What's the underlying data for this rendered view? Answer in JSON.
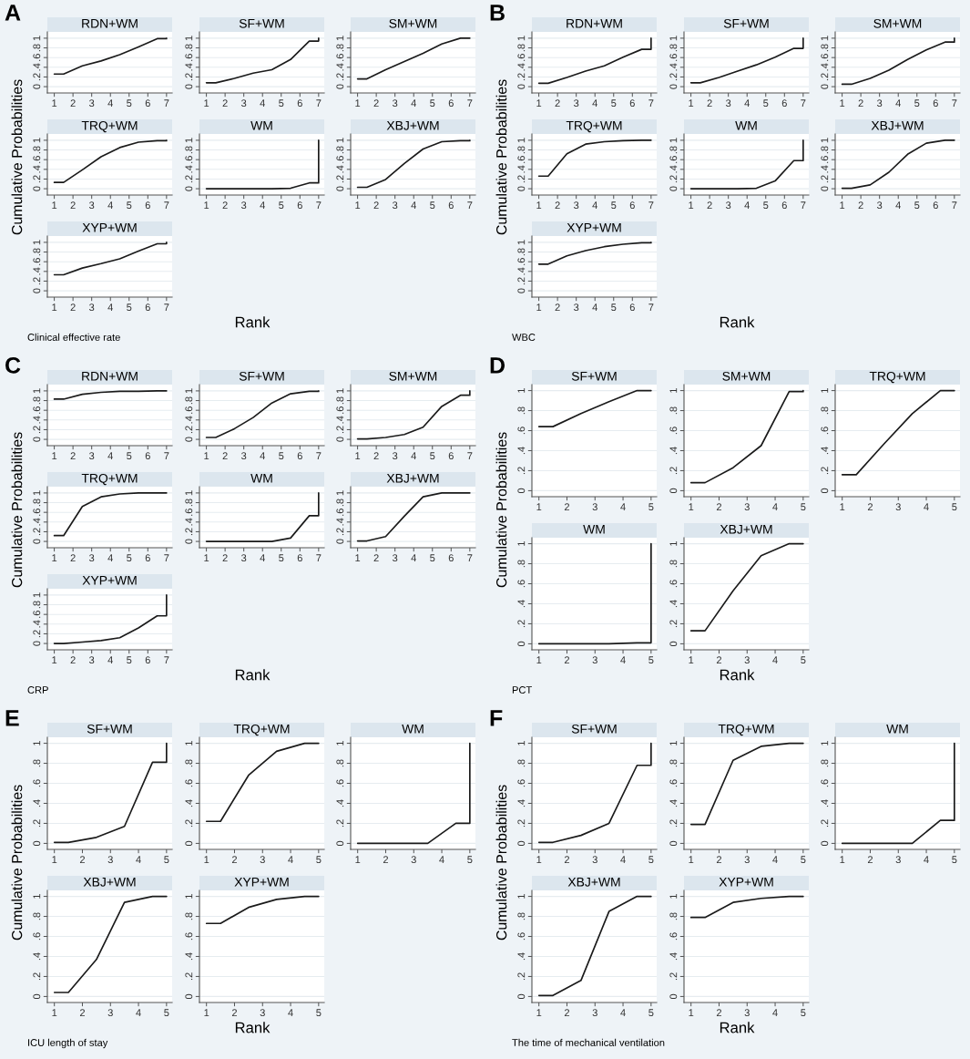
{
  "chart_data": [
    {
      "type": "line",
      "title": "RDN+WM",
      "xlabel": "Rank",
      "ylabel": "Cumulative Probabilities",
      "annotations": [
        "A",
        "Clinical effective rate"
      ],
      "color": "#1a1a1a",
      "grid": "y",
      "x": [
        1,
        1.5,
        2.5,
        3.5,
        4.5,
        5.5,
        6.5,
        7,
        7
      ],
      "values": [
        0.26,
        0.26,
        0.43,
        0.53,
        0.66,
        0.82,
        0.99,
        0.99,
        1
      ],
      "xlim": [
        0.63,
        7.3
      ],
      "xticks": [
        1,
        2,
        3,
        4,
        5,
        6,
        7
      ],
      "ylim": [
        -0.13,
        1.13
      ],
      "yticks": [
        0,
        {
          "value": 0.2,
          "label": ".2"
        },
        {
          "value": 0.4,
          "label": ".4"
        },
        {
          "value": 0.6,
          "label": ".6"
        },
        {
          "value": 0.8,
          "label": ".8"
        },
        1
      ]
    },
    {
      "type": "line",
      "title": "SF+WM",
      "color": "#1a1a1a",
      "grid": "y",
      "x": [
        1,
        1.5,
        2.5,
        3.5,
        4.5,
        5.5,
        6.5,
        7,
        7
      ],
      "values": [
        0.08,
        0.08,
        0.17,
        0.28,
        0.35,
        0.56,
        0.94,
        0.94,
        1
      ],
      "xlim": [
        0.63,
        7.3
      ],
      "xticks": [
        1,
        2,
        3,
        4,
        5,
        6,
        7
      ],
      "ylim": [
        -0.13,
        1.13
      ],
      "yticks": [
        0,
        {
          "value": 0.2,
          "label": ".2"
        },
        {
          "value": 0.4,
          "label": ".4"
        },
        {
          "value": 0.6,
          "label": ".6"
        },
        {
          "value": 0.8,
          "label": ".8"
        },
        1
      ]
    },
    {
      "type": "line",
      "title": "SM+WM",
      "color": "#1a1a1a",
      "grid": "y",
      "x": [
        1,
        1.5,
        2.5,
        3.5,
        4.5,
        5.5,
        6.5,
        7,
        7
      ],
      "values": [
        0.16,
        0.16,
        0.35,
        0.52,
        0.69,
        0.88,
        1,
        1,
        1
      ],
      "xlim": [
        0.63,
        7.3
      ],
      "xticks": [
        1,
        2,
        3,
        4,
        5,
        6,
        7
      ],
      "ylim": [
        -0.13,
        1.13
      ],
      "yticks": [
        0,
        {
          "value": 0.2,
          "label": ".2"
        },
        {
          "value": 0.4,
          "label": ".4"
        },
        {
          "value": 0.6,
          "label": ".6"
        },
        {
          "value": 0.8,
          "label": ".8"
        },
        1
      ]
    },
    {
      "type": "line",
      "title": "TRQ+WM",
      "color": "#1a1a1a",
      "grid": "y",
      "x": [
        1,
        1.5,
        2.5,
        3.5,
        4.5,
        5.5,
        6.5,
        7,
        7
      ],
      "values": [
        0.13,
        0.13,
        0.39,
        0.66,
        0.85,
        0.96,
        0.99,
        0.99,
        1
      ],
      "xlim": [
        0.63,
        7.3
      ],
      "xticks": [
        1,
        2,
        3,
        4,
        5,
        6,
        7
      ],
      "ylim": [
        -0.13,
        1.13
      ],
      "yticks": [
        0,
        {
          "value": 0.2,
          "label": ".2"
        },
        {
          "value": 0.4,
          "label": ".4"
        },
        {
          "value": 0.6,
          "label": ".6"
        },
        {
          "value": 0.8,
          "label": ".8"
        },
        1
      ]
    },
    {
      "type": "line",
      "title": "WM",
      "color": "#1a1a1a",
      "grid": "y",
      "x": [
        1,
        1.5,
        2.5,
        3.5,
        4.5,
        5.5,
        6.5,
        7,
        7
      ],
      "values": [
        0,
        0,
        0,
        0,
        0,
        0.01,
        0.12,
        0.12,
        1
      ],
      "xlim": [
        0.63,
        7.3
      ],
      "xticks": [
        1,
        2,
        3,
        4,
        5,
        6,
        7
      ],
      "ylim": [
        -0.13,
        1.13
      ],
      "yticks": [
        0,
        {
          "value": 0.2,
          "label": ".2"
        },
        {
          "value": 0.4,
          "label": ".4"
        },
        {
          "value": 0.6,
          "label": ".6"
        },
        {
          "value": 0.8,
          "label": ".8"
        },
        1
      ]
    },
    {
      "type": "line",
      "title": "XBJ+WM",
      "color": "#1a1a1a",
      "grid": "y",
      "x": [
        1,
        1.5,
        2.5,
        3.5,
        4.5,
        5.5,
        6.5,
        7,
        7
      ],
      "values": [
        0.03,
        0.03,
        0.19,
        0.52,
        0.82,
        0.97,
        0.99,
        0.99,
        1
      ],
      "xlim": [
        0.63,
        7.3
      ],
      "xticks": [
        1,
        2,
        3,
        4,
        5,
        6,
        7
      ],
      "ylim": [
        -0.13,
        1.13
      ],
      "yticks": [
        0,
        {
          "value": 0.2,
          "label": ".2"
        },
        {
          "value": 0.4,
          "label": ".4"
        },
        {
          "value": 0.6,
          "label": ".6"
        },
        {
          "value": 0.8,
          "label": ".8"
        },
        1
      ]
    },
    {
      "type": "line",
      "title": "XYP+WM",
      "color": "#1a1a1a",
      "grid": "y",
      "x": [
        1,
        1.5,
        2.5,
        3.5,
        4.5,
        5.5,
        6.5,
        7,
        7
      ],
      "values": [
        0.33,
        0.33,
        0.47,
        0.56,
        0.66,
        0.82,
        0.97,
        0.97,
        1
      ],
      "xlim": [
        0.63,
        7.3
      ],
      "xticks": [
        1,
        2,
        3,
        4,
        5,
        6,
        7
      ],
      "ylim": [
        -0.13,
        1.13
      ],
      "yticks": [
        0,
        {
          "value": 0.2,
          "label": ".2"
        },
        {
          "value": 0.4,
          "label": ".4"
        },
        {
          "value": 0.6,
          "label": ".6"
        },
        {
          "value": 0.8,
          "label": ".8"
        },
        1
      ]
    },
    {
      "type": "line",
      "title": "RDN+WM",
      "xlabel": "Rank",
      "ylabel": "Cumulative Probabilities",
      "annotations": [
        "B",
        "WBC"
      ],
      "color": "#1a1a1a",
      "grid": "y",
      "x": [
        1,
        1.5,
        2.5,
        3.5,
        4.5,
        5.5,
        6.5,
        7,
        7
      ],
      "values": [
        0.07,
        0.07,
        0.19,
        0.32,
        0.43,
        0.61,
        0.77,
        0.77,
        1
      ],
      "xlim": [
        0.63,
        7.3
      ],
      "xticks": [
        1,
        2,
        3,
        4,
        5,
        6,
        7
      ],
      "ylim": [
        -0.13,
        1.13
      ],
      "yticks": [
        0,
        {
          "value": 0.2,
          "label": ".2"
        },
        {
          "value": 0.4,
          "label": ".4"
        },
        {
          "value": 0.6,
          "label": ".6"
        },
        {
          "value": 0.8,
          "label": ".8"
        },
        1
      ]
    },
    {
      "type": "line",
      "title": "SF+WM",
      "color": "#1a1a1a",
      "grid": "y",
      "x": [
        1,
        1.5,
        2.5,
        3.5,
        4.5,
        5.5,
        6.5,
        7,
        7
      ],
      "values": [
        0.08,
        0.08,
        0.19,
        0.32,
        0.45,
        0.61,
        0.79,
        0.79,
        1
      ],
      "xlim": [
        0.63,
        7.3
      ],
      "xticks": [
        1,
        2,
        3,
        4,
        5,
        6,
        7
      ],
      "ylim": [
        -0.13,
        1.13
      ],
      "yticks": [
        0,
        {
          "value": 0.2,
          "label": ".2"
        },
        {
          "value": 0.4,
          "label": ".4"
        },
        {
          "value": 0.6,
          "label": ".6"
        },
        {
          "value": 0.8,
          "label": ".8"
        },
        1
      ]
    },
    {
      "type": "line",
      "title": "SM+WM",
      "color": "#1a1a1a",
      "grid": "y",
      "x": [
        1,
        1.5,
        2.5,
        3.5,
        4.5,
        5.5,
        6.5,
        7,
        7
      ],
      "values": [
        0.05,
        0.05,
        0.17,
        0.34,
        0.56,
        0.76,
        0.92,
        0.92,
        1
      ],
      "xlim": [
        0.63,
        7.3
      ],
      "xticks": [
        1,
        2,
        3,
        4,
        5,
        6,
        7
      ],
      "ylim": [
        -0.13,
        1.13
      ],
      "yticks": [
        0,
        {
          "value": 0.2,
          "label": ".2"
        },
        {
          "value": 0.4,
          "label": ".4"
        },
        {
          "value": 0.6,
          "label": ".6"
        },
        {
          "value": 0.8,
          "label": ".8"
        },
        1
      ]
    },
    {
      "type": "line",
      "title": "TRQ+WM",
      "color": "#1a1a1a",
      "grid": "y",
      "x": [
        1,
        1.5,
        2.5,
        3.5,
        4.5,
        5.5,
        6.5,
        7,
        7
      ],
      "values": [
        0.26,
        0.26,
        0.72,
        0.92,
        0.97,
        0.99,
        1,
        1,
        1
      ],
      "xlim": [
        0.63,
        7.3
      ],
      "xticks": [
        1,
        2,
        3,
        4,
        5,
        6,
        7
      ],
      "ylim": [
        -0.13,
        1.13
      ],
      "yticks": [
        0,
        {
          "value": 0.2,
          "label": ".2"
        },
        {
          "value": 0.4,
          "label": ".4"
        },
        {
          "value": 0.6,
          "label": ".6"
        },
        {
          "value": 0.8,
          "label": ".8"
        },
        1
      ]
    },
    {
      "type": "line",
      "title": "WM",
      "color": "#1a1a1a",
      "grid": "y",
      "x": [
        1,
        1.5,
        2.5,
        3.5,
        4.5,
        5.5,
        6.5,
        7,
        7
      ],
      "values": [
        0,
        0,
        0,
        0,
        0.01,
        0.16,
        0.58,
        0.58,
        1
      ],
      "xlim": [
        0.63,
        7.3
      ],
      "xticks": [
        1,
        2,
        3,
        4,
        5,
        6,
        7
      ],
      "ylim": [
        -0.13,
        1.13
      ],
      "yticks": [
        0,
        {
          "value": 0.2,
          "label": ".2"
        },
        {
          "value": 0.4,
          "label": ".4"
        },
        {
          "value": 0.6,
          "label": ".6"
        },
        {
          "value": 0.8,
          "label": ".8"
        },
        1
      ]
    },
    {
      "type": "line",
      "title": "XBJ+WM",
      "color": "#1a1a1a",
      "grid": "y",
      "x": [
        1,
        1.5,
        2.5,
        3.5,
        4.5,
        5.5,
        6.5,
        7,
        7
      ],
      "values": [
        0.01,
        0.01,
        0.08,
        0.34,
        0.71,
        0.94,
        1,
        1,
        1
      ],
      "xlim": [
        0.63,
        7.3
      ],
      "xticks": [
        1,
        2,
        3,
        4,
        5,
        6,
        7
      ],
      "ylim": [
        -0.13,
        1.13
      ],
      "yticks": [
        0,
        {
          "value": 0.2,
          "label": ".2"
        },
        {
          "value": 0.4,
          "label": ".4"
        },
        {
          "value": 0.6,
          "label": ".6"
        },
        {
          "value": 0.8,
          "label": ".8"
        },
        1
      ]
    },
    {
      "type": "line",
      "title": "XYP+WM",
      "color": "#1a1a1a",
      "grid": "y",
      "x": [
        1,
        1.5,
        2.5,
        3.5,
        4.5,
        5.5,
        6.5,
        7,
        7
      ],
      "values": [
        0.55,
        0.55,
        0.72,
        0.83,
        0.91,
        0.96,
        0.99,
        0.99,
        1
      ],
      "xlim": [
        0.63,
        7.3
      ],
      "xticks": [
        1,
        2,
        3,
        4,
        5,
        6,
        7
      ],
      "ylim": [
        -0.13,
        1.13
      ],
      "yticks": [
        0,
        {
          "value": 0.2,
          "label": ".2"
        },
        {
          "value": 0.4,
          "label": ".4"
        },
        {
          "value": 0.6,
          "label": ".6"
        },
        {
          "value": 0.8,
          "label": ".8"
        },
        1
      ]
    },
    {
      "type": "line",
      "title": "RDN+WM",
      "xlabel": "Rank",
      "ylabel": "Cumulative Probabilities",
      "annotations": [
        "C",
        "CRP"
      ],
      "color": "#1a1a1a",
      "grid": "y",
      "x": [
        1,
        1.5,
        2.5,
        3.5,
        4.5,
        5.5,
        6.5,
        7,
        7
      ],
      "values": [
        0.83,
        0.83,
        0.93,
        0.97,
        0.99,
        0.99,
        1,
        1,
        1
      ],
      "xlim": [
        0.63,
        7.3
      ],
      "xticks": [
        1,
        2,
        3,
        4,
        5,
        6,
        7
      ],
      "ylim": [
        -0.13,
        1.13
      ],
      "yticks": [
        0,
        {
          "value": 0.2,
          "label": ".2"
        },
        {
          "value": 0.4,
          "label": ".4"
        },
        {
          "value": 0.6,
          "label": ".6"
        },
        {
          "value": 0.8,
          "label": ".8"
        },
        1
      ]
    },
    {
      "type": "line",
      "title": "SF+WM",
      "color": "#1a1a1a",
      "grid": "y",
      "x": [
        1,
        1.5,
        2.5,
        3.5,
        4.5,
        5.5,
        6.5,
        7,
        7
      ],
      "values": [
        0.04,
        0.04,
        0.22,
        0.45,
        0.75,
        0.94,
        0.99,
        0.99,
        1
      ],
      "xlim": [
        0.63,
        7.3
      ],
      "xticks": [
        1,
        2,
        3,
        4,
        5,
        6,
        7
      ],
      "ylim": [
        -0.13,
        1.13
      ],
      "yticks": [
        0,
        {
          "value": 0.2,
          "label": ".2"
        },
        {
          "value": 0.4,
          "label": ".4"
        },
        {
          "value": 0.6,
          "label": ".6"
        },
        {
          "value": 0.8,
          "label": ".8"
        },
        1
      ]
    },
    {
      "type": "line",
      "title": "SM+WM",
      "color": "#1a1a1a",
      "grid": "y",
      "x": [
        1,
        1.5,
        2.5,
        3.5,
        4.5,
        5.5,
        6.5,
        7,
        7
      ],
      "values": [
        0.01,
        0.01,
        0.04,
        0.1,
        0.25,
        0.68,
        0.91,
        0.91,
        1
      ],
      "xlim": [
        0.63,
        7.3
      ],
      "xticks": [
        1,
        2,
        3,
        4,
        5,
        6,
        7
      ],
      "ylim": [
        -0.13,
        1.13
      ],
      "yticks": [
        0,
        {
          "value": 0.2,
          "label": ".2"
        },
        {
          "value": 0.4,
          "label": ".4"
        },
        {
          "value": 0.6,
          "label": ".6"
        },
        {
          "value": 0.8,
          "label": ".8"
        },
        1
      ]
    },
    {
      "type": "line",
      "title": "TRQ+WM",
      "color": "#1a1a1a",
      "grid": "y",
      "x": [
        1,
        1.5,
        2.5,
        3.5,
        4.5,
        5.5,
        6.5,
        7,
        7
      ],
      "values": [
        0.12,
        0.12,
        0.72,
        0.92,
        0.98,
        1,
        1,
        1,
        1
      ],
      "xlim": [
        0.63,
        7.3
      ],
      "xticks": [
        1,
        2,
        3,
        4,
        5,
        6,
        7
      ],
      "ylim": [
        -0.13,
        1.13
      ],
      "yticks": [
        0,
        {
          "value": 0.2,
          "label": ".2"
        },
        {
          "value": 0.4,
          "label": ".4"
        },
        {
          "value": 0.6,
          "label": ".6"
        },
        {
          "value": 0.8,
          "label": ".8"
        },
        1
      ]
    },
    {
      "type": "line",
      "title": "WM",
      "color": "#1a1a1a",
      "grid": "y",
      "x": [
        1,
        1.5,
        2.5,
        3.5,
        4.5,
        5.5,
        6.5,
        7,
        7
      ],
      "values": [
        0,
        0,
        0,
        0,
        0,
        0.07,
        0.53,
        0.53,
        1
      ],
      "xlim": [
        0.63,
        7.3
      ],
      "xticks": [
        1,
        2,
        3,
        4,
        5,
        6,
        7
      ],
      "ylim": [
        -0.13,
        1.13
      ],
      "yticks": [
        0,
        {
          "value": 0.2,
          "label": ".2"
        },
        {
          "value": 0.4,
          "label": ".4"
        },
        {
          "value": 0.6,
          "label": ".6"
        },
        {
          "value": 0.8,
          "label": ".8"
        },
        1
      ]
    },
    {
      "type": "line",
      "title": "XBJ+WM",
      "color": "#1a1a1a",
      "grid": "y",
      "x": [
        1,
        1.5,
        2.5,
        3.5,
        4.5,
        5.5,
        6.5,
        7,
        7
      ],
      "values": [
        0.01,
        0.01,
        0.1,
        0.52,
        0.92,
        1,
        1,
        1,
        1
      ],
      "xlim": [
        0.63,
        7.3
      ],
      "xticks": [
        1,
        2,
        3,
        4,
        5,
        6,
        7
      ],
      "ylim": [
        -0.13,
        1.13
      ],
      "yticks": [
        0,
        {
          "value": 0.2,
          "label": ".2"
        },
        {
          "value": 0.4,
          "label": ".4"
        },
        {
          "value": 0.6,
          "label": ".6"
        },
        {
          "value": 0.8,
          "label": ".8"
        },
        1
      ]
    },
    {
      "type": "line",
      "title": "XYP+WM",
      "color": "#1a1a1a",
      "grid": "y",
      "x": [
        1,
        1.5,
        2.5,
        3.5,
        4.5,
        5.5,
        6.5,
        7,
        7
      ],
      "values": [
        0,
        0,
        0.03,
        0.06,
        0.12,
        0.32,
        0.57,
        0.57,
        1
      ],
      "xlim": [
        0.63,
        7.3
      ],
      "xticks": [
        1,
        2,
        3,
        4,
        5,
        6,
        7
      ],
      "ylim": [
        -0.13,
        1.13
      ],
      "yticks": [
        0,
        {
          "value": 0.2,
          "label": ".2"
        },
        {
          "value": 0.4,
          "label": ".4"
        },
        {
          "value": 0.6,
          "label": ".6"
        },
        {
          "value": 0.8,
          "label": ".8"
        },
        1
      ]
    },
    {
      "type": "line",
      "title": "SF+WM",
      "xlabel": "Rank",
      "ylabel": "Cumulative Probabilities",
      "annotations": [
        "D",
        "PCT"
      ],
      "color": "#1a1a1a",
      "grid": "y",
      "x": [
        1,
        1.5,
        2.5,
        3.5,
        4.5,
        5,
        5
      ],
      "values": [
        0.64,
        0.64,
        0.77,
        0.89,
        1,
        1,
        1
      ],
      "xlim": [
        0.75,
        5.2
      ],
      "xticks": [
        1,
        2,
        3,
        4,
        5
      ],
      "ylim": [
        -0.06,
        1.06
      ],
      "yticks": [
        0,
        {
          "value": 0.2,
          "label": ".2"
        },
        {
          "value": 0.4,
          "label": ".4"
        },
        {
          "value": 0.6,
          "label": ".6"
        },
        {
          "value": 0.8,
          "label": ".8"
        },
        1
      ]
    },
    {
      "type": "line",
      "title": "SM+WM",
      "color": "#1a1a1a",
      "grid": "y",
      "x": [
        1,
        1.5,
        2.5,
        3.5,
        4.5,
        5,
        5
      ],
      "values": [
        0.08,
        0.08,
        0.23,
        0.45,
        0.99,
        0.99,
        1
      ],
      "xlim": [
        0.75,
        5.2
      ],
      "xticks": [
        1,
        2,
        3,
        4,
        5
      ],
      "ylim": [
        -0.06,
        1.06
      ],
      "yticks": [
        0,
        {
          "value": 0.2,
          "label": ".2"
        },
        {
          "value": 0.4,
          "label": ".4"
        },
        {
          "value": 0.6,
          "label": ".6"
        },
        {
          "value": 0.8,
          "label": ".8"
        },
        1
      ]
    },
    {
      "type": "line",
      "title": "TRQ+WM",
      "color": "#1a1a1a",
      "grid": "y",
      "x": [
        1,
        1.5,
        2.5,
        3.5,
        4.5,
        5,
        5
      ],
      "values": [
        0.16,
        0.16,
        0.47,
        0.77,
        1,
        1,
        1
      ],
      "xlim": [
        0.75,
        5.2
      ],
      "xticks": [
        1,
        2,
        3,
        4,
        5
      ],
      "ylim": [
        -0.06,
        1.06
      ],
      "yticks": [
        0,
        {
          "value": 0.2,
          "label": ".2"
        },
        {
          "value": 0.4,
          "label": ".4"
        },
        {
          "value": 0.6,
          "label": ".6"
        },
        {
          "value": 0.8,
          "label": ".8"
        },
        1
      ]
    },
    {
      "type": "line",
      "title": "WM",
      "color": "#1a1a1a",
      "grid": "y",
      "x": [
        1,
        1.5,
        2.5,
        3.5,
        4.5,
        5,
        5
      ],
      "values": [
        0,
        0,
        0,
        0,
        0.01,
        0.01,
        1
      ],
      "xlim": [
        0.75,
        5.2
      ],
      "xticks": [
        1,
        2,
        3,
        4,
        5
      ],
      "ylim": [
        -0.06,
        1.06
      ],
      "yticks": [
        0,
        {
          "value": 0.2,
          "label": ".2"
        },
        {
          "value": 0.4,
          "label": ".4"
        },
        {
          "value": 0.6,
          "label": ".6"
        },
        {
          "value": 0.8,
          "label": ".8"
        },
        1
      ]
    },
    {
      "type": "line",
      "title": "XBJ+WM",
      "color": "#1a1a1a",
      "grid": "y",
      "x": [
        1,
        1.5,
        2.5,
        3.5,
        4.5,
        5,
        5
      ],
      "values": [
        0.13,
        0.13,
        0.53,
        0.88,
        1,
        1,
        1
      ],
      "xlim": [
        0.75,
        5.2
      ],
      "xticks": [
        1,
        2,
        3,
        4,
        5
      ],
      "ylim": [
        -0.06,
        1.06
      ],
      "yticks": [
        0,
        {
          "value": 0.2,
          "label": ".2"
        },
        {
          "value": 0.4,
          "label": ".4"
        },
        {
          "value": 0.6,
          "label": ".6"
        },
        {
          "value": 0.8,
          "label": ".8"
        },
        1
      ]
    },
    {
      "type": "line",
      "title": "SF+WM",
      "xlabel": "Rank",
      "ylabel": "Cumulative Probabilities",
      "annotations": [
        "E",
        "ICU length of stay"
      ],
      "color": "#1a1a1a",
      "grid": "y",
      "x": [
        1,
        1.5,
        2.5,
        3.5,
        4.5,
        5,
        5
      ],
      "values": [
        0.01,
        0.01,
        0.06,
        0.17,
        0.81,
        0.81,
        1
      ],
      "xlim": [
        0.75,
        5.2
      ],
      "xticks": [
        1,
        2,
        3,
        4,
        5
      ],
      "ylim": [
        -0.06,
        1.06
      ],
      "yticks": [
        0,
        {
          "value": 0.2,
          "label": ".2"
        },
        {
          "value": 0.4,
          "label": ".4"
        },
        {
          "value": 0.6,
          "label": ".6"
        },
        {
          "value": 0.8,
          "label": ".8"
        },
        1
      ]
    },
    {
      "type": "line",
      "title": "TRQ+WM",
      "color": "#1a1a1a",
      "grid": "y",
      "x": [
        1,
        1.5,
        2.5,
        3.5,
        4.5,
        5,
        5
      ],
      "values": [
        0.22,
        0.22,
        0.68,
        0.92,
        1,
        1,
        1
      ],
      "xlim": [
        0.75,
        5.2
      ],
      "xticks": [
        1,
        2,
        3,
        4,
        5
      ],
      "ylim": [
        -0.06,
        1.06
      ],
      "yticks": [
        0,
        {
          "value": 0.2,
          "label": ".2"
        },
        {
          "value": 0.4,
          "label": ".4"
        },
        {
          "value": 0.6,
          "label": ".6"
        },
        {
          "value": 0.8,
          "label": ".8"
        },
        1
      ]
    },
    {
      "type": "line",
      "title": "WM",
      "color": "#1a1a1a",
      "grid": "y",
      "x": [
        1,
        1.5,
        2.5,
        3.5,
        4.5,
        5,
        5
      ],
      "values": [
        0,
        0,
        0,
        0,
        0.2,
        0.2,
        1
      ],
      "xlim": [
        0.75,
        5.2
      ],
      "xticks": [
        1,
        2,
        3,
        4,
        5
      ],
      "ylim": [
        -0.06,
        1.06
      ],
      "yticks": [
        0,
        {
          "value": 0.2,
          "label": ".2"
        },
        {
          "value": 0.4,
          "label": ".4"
        },
        {
          "value": 0.6,
          "label": ".6"
        },
        {
          "value": 0.8,
          "label": ".8"
        },
        1
      ]
    },
    {
      "type": "line",
      "title": "XBJ+WM",
      "color": "#1a1a1a",
      "grid": "y",
      "x": [
        1,
        1.5,
        2.5,
        3.5,
        4.5,
        5,
        5
      ],
      "values": [
        0.04,
        0.04,
        0.37,
        0.94,
        1,
        1,
        1
      ],
      "xlim": [
        0.75,
        5.2
      ],
      "xticks": [
        1,
        2,
        3,
        4,
        5
      ],
      "ylim": [
        -0.06,
        1.06
      ],
      "yticks": [
        0,
        {
          "value": 0.2,
          "label": ".2"
        },
        {
          "value": 0.4,
          "label": ".4"
        },
        {
          "value": 0.6,
          "label": ".6"
        },
        {
          "value": 0.8,
          "label": ".8"
        },
        1
      ]
    },
    {
      "type": "line",
      "title": "XYP+WM",
      "color": "#1a1a1a",
      "grid": "y",
      "x": [
        1,
        1.5,
        2.5,
        3.5,
        4.5,
        5,
        5
      ],
      "values": [
        0.73,
        0.73,
        0.89,
        0.97,
        1,
        1,
        1
      ],
      "xlim": [
        0.75,
        5.2
      ],
      "xticks": [
        1,
        2,
        3,
        4,
        5
      ],
      "ylim": [
        -0.06,
        1.06
      ],
      "yticks": [
        0,
        {
          "value": 0.2,
          "label": ".2"
        },
        {
          "value": 0.4,
          "label": ".4"
        },
        {
          "value": 0.6,
          "label": ".6"
        },
        {
          "value": 0.8,
          "label": ".8"
        },
        1
      ]
    },
    {
      "type": "line",
      "title": "SF+WM",
      "xlabel": "Rank",
      "ylabel": "Cumulative Probabilities",
      "annotations": [
        "F",
        "The time of mechanical ventilation"
      ],
      "color": "#1a1a1a",
      "grid": "y",
      "x": [
        1,
        1.5,
        2.5,
        3.5,
        4.5,
        5,
        5
      ],
      "values": [
        0.01,
        0.01,
        0.08,
        0.2,
        0.78,
        0.78,
        1
      ],
      "xlim": [
        0.75,
        5.2
      ],
      "xticks": [
        1,
        2,
        3,
        4,
        5
      ],
      "ylim": [
        -0.06,
        1.06
      ],
      "yticks": [
        0,
        {
          "value": 0.2,
          "label": ".2"
        },
        {
          "value": 0.4,
          "label": ".4"
        },
        {
          "value": 0.6,
          "label": ".6"
        },
        {
          "value": 0.8,
          "label": ".8"
        },
        1
      ]
    },
    {
      "type": "line",
      "title": "TRQ+WM",
      "color": "#1a1a1a",
      "grid": "y",
      "x": [
        1,
        1.5,
        2.5,
        3.5,
        4.5,
        5,
        5
      ],
      "values": [
        0.19,
        0.19,
        0.83,
        0.97,
        1,
        1,
        1
      ],
      "xlim": [
        0.75,
        5.2
      ],
      "xticks": [
        1,
        2,
        3,
        4,
        5
      ],
      "ylim": [
        -0.06,
        1.06
      ],
      "yticks": [
        0,
        {
          "value": 0.2,
          "label": ".2"
        },
        {
          "value": 0.4,
          "label": ".4"
        },
        {
          "value": 0.6,
          "label": ".6"
        },
        {
          "value": 0.8,
          "label": ".8"
        },
        1
      ]
    },
    {
      "type": "line",
      "title": "WM",
      "color": "#1a1a1a",
      "grid": "y",
      "x": [
        1,
        1.5,
        2.5,
        3.5,
        4.5,
        5,
        5
      ],
      "values": [
        0,
        0,
        0,
        0,
        0.23,
        0.23,
        1
      ],
      "xlim": [
        0.75,
        5.2
      ],
      "xticks": [
        1,
        2,
        3,
        4,
        5
      ],
      "ylim": [
        -0.06,
        1.06
      ],
      "yticks": [
        0,
        {
          "value": 0.2,
          "label": ".2"
        },
        {
          "value": 0.4,
          "label": ".4"
        },
        {
          "value": 0.6,
          "label": ".6"
        },
        {
          "value": 0.8,
          "label": ".8"
        },
        1
      ]
    },
    {
      "type": "line",
      "title": "XBJ+WM",
      "color": "#1a1a1a",
      "grid": "y",
      "x": [
        1,
        1.5,
        2.5,
        3.5,
        4.5,
        5,
        5
      ],
      "values": [
        0.01,
        0.01,
        0.16,
        0.85,
        1,
        1,
        1
      ],
      "xlim": [
        0.75,
        5.2
      ],
      "xticks": [
        1,
        2,
        3,
        4,
        5
      ],
      "ylim": [
        -0.06,
        1.06
      ],
      "yticks": [
        0,
        {
          "value": 0.2,
          "label": ".2"
        },
        {
          "value": 0.4,
          "label": ".4"
        },
        {
          "value": 0.6,
          "label": ".6"
        },
        {
          "value": 0.8,
          "label": ".8"
        },
        1
      ]
    },
    {
      "type": "line",
      "title": "XYP+WM",
      "color": "#1a1a1a",
      "grid": "y",
      "x": [
        1,
        1.5,
        2.5,
        3.5,
        4.5,
        5,
        5
      ],
      "values": [
        0.79,
        0.79,
        0.94,
        0.98,
        1,
        1,
        1
      ],
      "xlim": [
        0.75,
        5.2
      ],
      "xticks": [
        1,
        2,
        3,
        4,
        5
      ],
      "ylim": [
        -0.06,
        1.06
      ],
      "yticks": [
        0,
        {
          "value": 0.2,
          "label": ".2"
        },
        {
          "value": 0.4,
          "label": ".4"
        },
        {
          "value": 0.6,
          "label": ".6"
        },
        {
          "value": 0.8,
          "label": ".8"
        },
        1
      ]
    }
  ]
}
